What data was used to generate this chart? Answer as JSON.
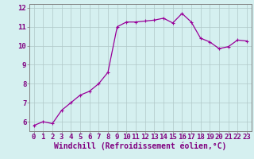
{
  "x": [
    0,
    1,
    2,
    3,
    4,
    5,
    6,
    7,
    8,
    9,
    10,
    11,
    12,
    13,
    14,
    15,
    16,
    17,
    18,
    19,
    20,
    21,
    22,
    23
  ],
  "y": [
    5.8,
    6.0,
    5.9,
    6.6,
    7.0,
    7.4,
    7.6,
    8.0,
    8.6,
    11.0,
    11.25,
    11.25,
    11.3,
    11.35,
    11.45,
    11.2,
    11.7,
    11.25,
    10.4,
    10.2,
    9.85,
    9.95,
    10.3,
    10.25
  ],
  "line_color": "#990099",
  "marker": "+",
  "marker_size": 3,
  "marker_lw": 0.8,
  "bg_color": "#d5f0f0",
  "grid_color": "#b0c8c8",
  "xlabel": "Windchill (Refroidissement éolien,°C)",
  "xlim": [
    -0.5,
    23.5
  ],
  "ylim": [
    5.5,
    12.2
  ],
  "xtick_labels": [
    "0",
    "1",
    "2",
    "3",
    "4",
    "5",
    "6",
    "7",
    "8",
    "9",
    "10",
    "11",
    "12",
    "13",
    "14",
    "15",
    "16",
    "17",
    "18",
    "19",
    "20",
    "21",
    "22",
    "23"
  ],
  "ytick_values": [
    6,
    7,
    8,
    9,
    10,
    11,
    12
  ],
  "font_size": 6.5,
  "xlabel_font_size": 7,
  "label_color": "#800080",
  "axis_color": "#808080",
  "line_width": 0.9
}
